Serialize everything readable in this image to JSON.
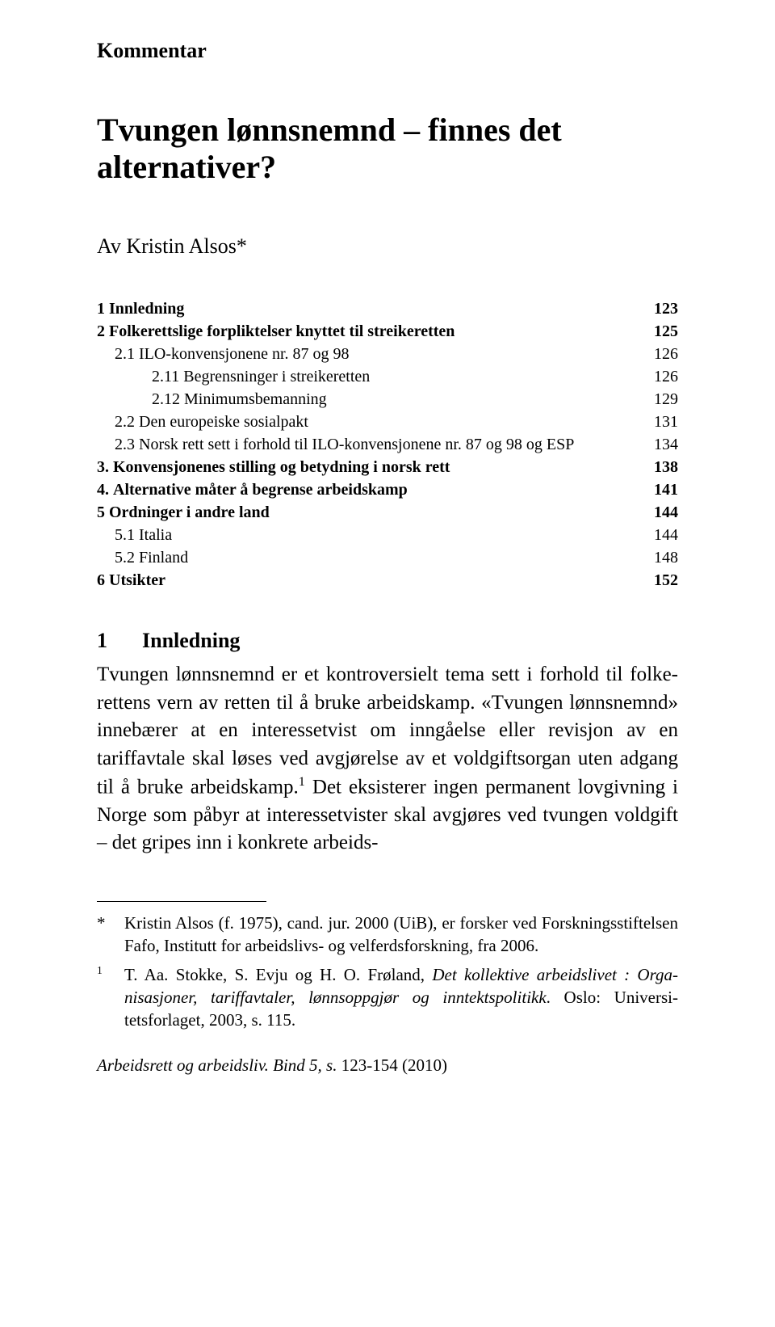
{
  "series_label": "Kommentar",
  "title": "Tvungen lønnsnemnd – finnes det alternativer?",
  "author_prefix": "Av  ",
  "author_name": "Kristin Alsos*",
  "toc": [
    {
      "level": "top",
      "num": "1 ",
      "label": "Innledning",
      "page": "123"
    },
    {
      "level": "top",
      "num": "2 ",
      "label": "Folkerettslige forpliktelser knyttet til streikeretten",
      "page": "125"
    },
    {
      "level": "sub",
      "num": "2.1 ",
      "label": "ILO-konvensjonene nr. 87 og 98",
      "page": "126"
    },
    {
      "level": "subsub",
      "num": "2.11 ",
      "label": "Begrensninger i streikeretten",
      "page": "126"
    },
    {
      "level": "subsub",
      "num": "2.12 ",
      "label": "Minimumsbemanning",
      "page": "129"
    },
    {
      "level": "sub",
      "num": "2.2 ",
      "label": "Den europeiske sosialpakt",
      "page": "131"
    },
    {
      "level": "sub",
      "num": "2.3 ",
      "label": "Norsk rett sett i forhold til ILO-konvensjonene nr. 87 og 98 og ESP",
      "page": "134"
    },
    {
      "level": "top",
      "num": "3. ",
      "label": "Konvensjonenes stilling og betydning i norsk rett",
      "page": "138"
    },
    {
      "level": "top",
      "num": "4. ",
      "label": "Alternative måter å begrense arbeidskamp",
      "page": "141"
    },
    {
      "level": "top",
      "num": "5 ",
      "label": "Ordninger i andre land",
      "page": "144"
    },
    {
      "level": "sub",
      "num": "5.1 ",
      "label": "Italia",
      "page": "144"
    },
    {
      "level": "sub",
      "num": "5.2 ",
      "label": "Finland",
      "page": "148"
    },
    {
      "level": "top",
      "num": "6 ",
      "label": "Utsikter",
      "page": "152"
    }
  ],
  "section": {
    "number": "1",
    "title": "Innledning",
    "body_html": "Tvungen lønnsnemnd er et kontroversielt tema sett i forhold til folke­rettens vern av retten til å bruke arbeidskamp. «Tvungen lønnsnemnd» innebærer at en interessetvist om inngåelse eller revisjon av en tariffavtale skal løses ved avgjørelse av et voldgiftsorgan uten adgang til å bruke arbeidskamp.<span class=\"sup\">1</span> Det eksisterer ingen permanent lovgivning i Norge som påbyr at interessetvister skal avgjøres ved tvungen voldgift – det gripes inn i konkrete arbeids-"
  },
  "footnotes": [
    {
      "marker": "*",
      "html": "Kristin Alsos (f. 1975), cand. jur. 2000 (UiB), er forsker ved Forsknings­stiftelsen Fafo, Institutt for arbeidslivs- og velferdsforskning, fra 2006."
    },
    {
      "marker": "1",
      "html": "T. Aa. Stokke, S. Evju og H. O. Frøland, <span class=\"italic\">Det kollektive arbeidslivet : Orga­nisasjoner, tariffavtaler, lønnsoppgjør og inntektspolitikk</span>. Oslo: Universi­tetsforlaget, 2003, s. 115."
    }
  ],
  "journal_footer_html": "<span class=\"italic\">Arbeidsrett og arbeidsliv. Bind 5, s. </span>123-154 (2010)"
}
